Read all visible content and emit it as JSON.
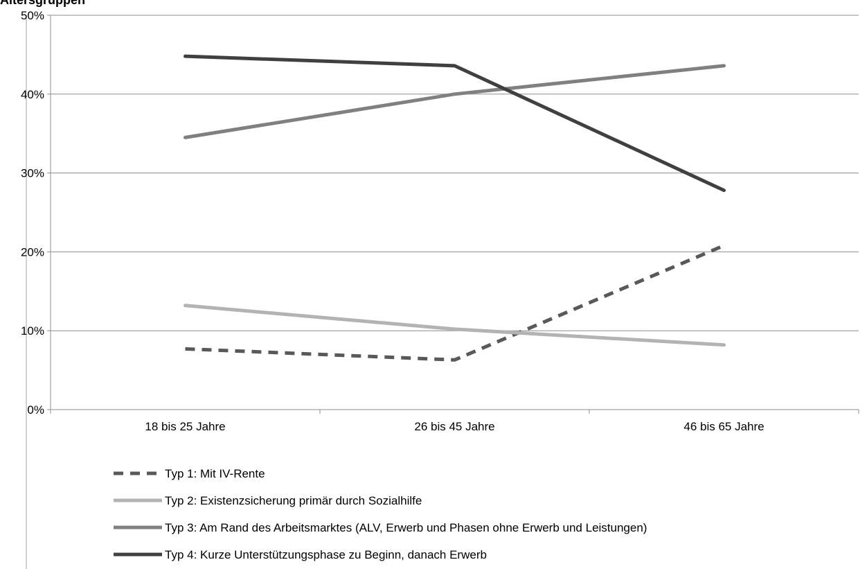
{
  "chart_data": {
    "type": "line",
    "title": "Altersgruppen",
    "categories": [
      "18 bis 25 Jahre",
      "26 bis 45 Jahre",
      "46 bis 65 Jahre"
    ],
    "ylim": [
      0,
      50
    ],
    "yticks": [
      0,
      10,
      20,
      30,
      40,
      50
    ],
    "ytick_labels": [
      "0%",
      "10%",
      "20%",
      "30%",
      "40%",
      "50%"
    ],
    "grid": true,
    "legend_position": "bottom",
    "series": [
      {
        "name": "Typ 1: Mit IV-Rente",
        "values": [
          7.7,
          6.3,
          20.8
        ],
        "color": "#595959",
        "dashed": true
      },
      {
        "name": "Typ 2: Existenzsicherung primär durch Sozialhilfe",
        "values": [
          13.2,
          10.2,
          8.2
        ],
        "color": "#b3b3b3",
        "dashed": false
      },
      {
        "name": "Typ 3: Am Rand des Arbeitsmarktes (ALV, Erwerb und Phasen ohne Erwerb und Leistungen)",
        "values": [
          34.5,
          40.0,
          43.6
        ],
        "color": "#808080",
        "dashed": false
      },
      {
        "name": "Typ 4: Kurze Unterstützungsphase zu Beginn, danach Erwerb",
        "values": [
          44.8,
          43.6,
          27.8
        ],
        "color": "#404040",
        "dashed": false
      }
    ]
  }
}
